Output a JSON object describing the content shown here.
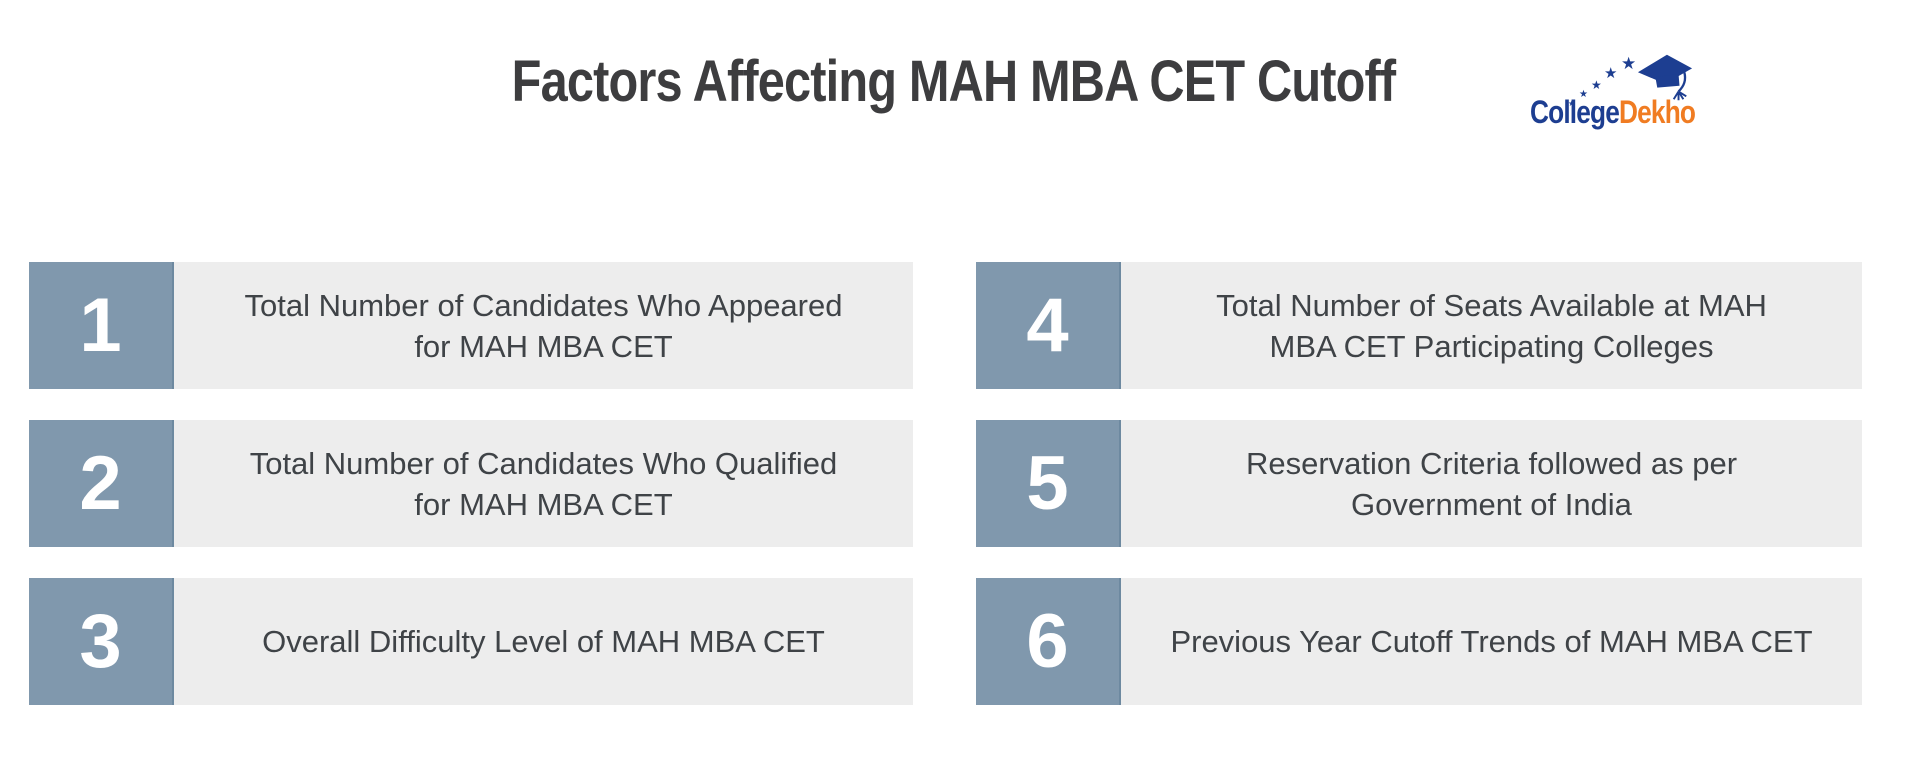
{
  "header": {
    "title": "Factors Affecting MAH MBA CET Cutoff",
    "logo": {
      "college": "College",
      "dekho": "Dekho",
      "star_glyph": "★"
    }
  },
  "columns": {
    "left": [
      {
        "number": "1",
        "lines": [
          "Total Number of Candidates Who Appeared",
          "for MAH MBA CET"
        ]
      },
      {
        "number": "2",
        "lines": [
          "Total Number of Candidates Who Qualified",
          "for MAH MBA CET"
        ]
      },
      {
        "number": "3",
        "lines": [
          "Overall Difficulty Level of MAH MBA CET"
        ]
      }
    ],
    "right": [
      {
        "number": "4",
        "lines": [
          "Total Number of Seats Available at MAH",
          "MBA CET Participating Colleges"
        ]
      },
      {
        "number": "5",
        "lines": [
          "Reservation Criteria followed as per",
          "Government of India"
        ]
      },
      {
        "number": "6",
        "lines": [
          "Previous Year Cutoff Trends of MAH MBA CET"
        ]
      }
    ]
  },
  "colors": {
    "number_box": "#8098ad",
    "number_box_edge": "#6d89a0",
    "panel_background": "#ededed",
    "body_text": "#3f4347",
    "title_text": "#3d3d3f",
    "logo_navy": "#1d3e91",
    "logo_orange": "#f07c22"
  }
}
